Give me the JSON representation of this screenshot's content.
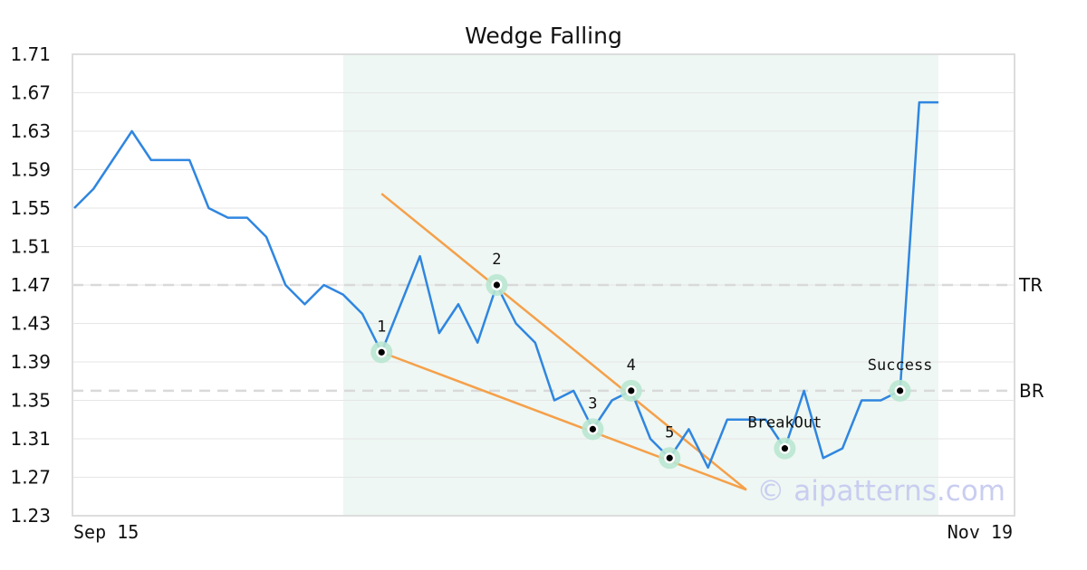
{
  "chart_data": {
    "type": "line",
    "title": "Wedge Falling",
    "x_start_label": "Sep 15",
    "x_end_label": "Nov 19",
    "ylim": [
      1.23,
      1.71
    ],
    "y_ticks": [
      "1.71",
      "1.67",
      "1.63",
      "1.59",
      "1.55",
      "1.51",
      "1.47",
      "1.43",
      "1.39",
      "1.35",
      "1.31",
      "1.27",
      "1.23"
    ],
    "grid": true,
    "series": [
      {
        "color": "#2f86e0",
        "values": [
          1.55,
          1.57,
          1.6,
          1.63,
          1.6,
          1.6,
          1.6,
          1.55,
          1.54,
          1.54,
          1.52,
          1.47,
          1.45,
          1.47,
          1.46,
          1.44,
          1.4,
          1.45,
          1.5,
          1.42,
          1.45,
          1.41,
          1.47,
          1.43,
          1.41,
          1.35,
          1.36,
          1.32,
          1.35,
          1.36,
          1.31,
          1.29,
          1.32,
          1.28,
          1.33,
          1.33,
          1.33,
          1.3,
          1.36,
          1.29,
          1.3,
          1.35,
          1.35,
          1.36,
          1.66,
          1.66
        ]
      }
    ],
    "highlight_range": [
      14,
      45
    ],
    "levels": [
      {
        "label": "TR",
        "value": 1.47
      },
      {
        "label": "BR",
        "value": 1.36
      }
    ],
    "trendlines": [
      {
        "color": "#f5a04a",
        "from": [
          16,
          1.565
        ],
        "to": [
          35,
          1.257
        ]
      },
      {
        "color": "#f5a04a",
        "from": [
          16,
          1.4
        ],
        "to": [
          35,
          1.257
        ]
      }
    ],
    "points": [
      {
        "label": "1",
        "x": 16,
        "y": 1.4
      },
      {
        "label": "2",
        "x": 22,
        "y": 1.47
      },
      {
        "label": "3",
        "x": 27,
        "y": 1.32
      },
      {
        "label": "4",
        "x": 29,
        "y": 1.36
      },
      {
        "label": "5",
        "x": 31,
        "y": 1.29
      },
      {
        "label": "BreakOut",
        "x": 37,
        "y": 1.3
      },
      {
        "label": "Success",
        "x": 43,
        "y": 1.36
      }
    ],
    "watermark": "© aipatterns.com",
    "colors": {
      "line": "#2f86e0",
      "trendline": "#f5a04a",
      "highlight": "#eef7f3",
      "marker_ring": "#b9e6d2",
      "grid": "#e6e6e6",
      "level": "#d9d9d9",
      "frame": "#dddddd"
    }
  }
}
